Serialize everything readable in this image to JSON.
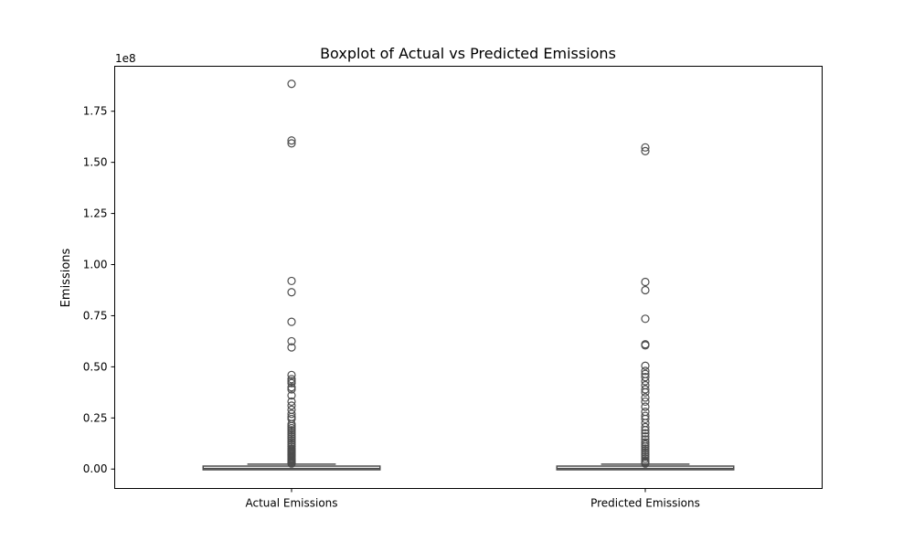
{
  "chart_data": {
    "type": "box",
    "title": "Boxplot of Actual vs Predicted Emissions",
    "xlabel": "",
    "ylabel": "Emissions",
    "offset_label": "1e8",
    "ylim": [
      -9500000,
      197000000
    ],
    "yticks": [
      0.0,
      0.25,
      0.5,
      0.75,
      1.0,
      1.25,
      1.5,
      1.75
    ],
    "ytick_labels": [
      "0.00",
      "0.25",
      "0.50",
      "0.75",
      "1.00",
      "1.25",
      "1.50",
      "1.75"
    ],
    "ytick_scale": 100000000,
    "categories": [
      "Actual Emissions",
      "Predicted Emissions"
    ],
    "grid": false,
    "box_color": "#4d4d4d",
    "series": [
      {
        "whisker_low": 0,
        "q1": 100000,
        "median": 300000,
        "q3": 1000000,
        "whisker_high": 2400000,
        "outliers": [
          188400000,
          160700000,
          159300000,
          92000000,
          86500000,
          72000000,
          62500000,
          59500000,
          46000000,
          44000000,
          43000000,
          42000000,
          40000000,
          39000000,
          36000000,
          33000000,
          31000000,
          29000000,
          27000000,
          25500000,
          24500000,
          22000000,
          21000000,
          20000000,
          19000000,
          18000000,
          17000000,
          16000000,
          15000000,
          14000000,
          13000000,
          12000000,
          11000000,
          10000000,
          9500000,
          9000000,
          8500000,
          8000000,
          7500000,
          7000000,
          6500000,
          6000000,
          5500000,
          5000000,
          4500000,
          4000000,
          3500000,
          3000000,
          2700000
        ]
      },
      {
        "whisker_low": 0,
        "q1": 100000,
        "median": 300000,
        "q3": 1000000,
        "whisker_high": 2400000,
        "outliers": [
          157300000,
          155500000,
          91500000,
          87500000,
          73500000,
          61000000,
          60500000,
          50500000,
          48000000,
          46500000,
          45000000,
          43000000,
          41000000,
          39000000,
          37500000,
          35000000,
          33000000,
          30500000,
          28000000,
          26000000,
          24500000,
          22500000,
          20500000,
          19000000,
          17500000,
          16000000,
          14500000,
          13000000,
          12000000,
          11000000,
          10000000,
          9000000,
          8000000,
          7000000,
          6000000,
          5000000,
          4000000,
          3500000,
          3000000,
          2700000
        ]
      }
    ]
  }
}
